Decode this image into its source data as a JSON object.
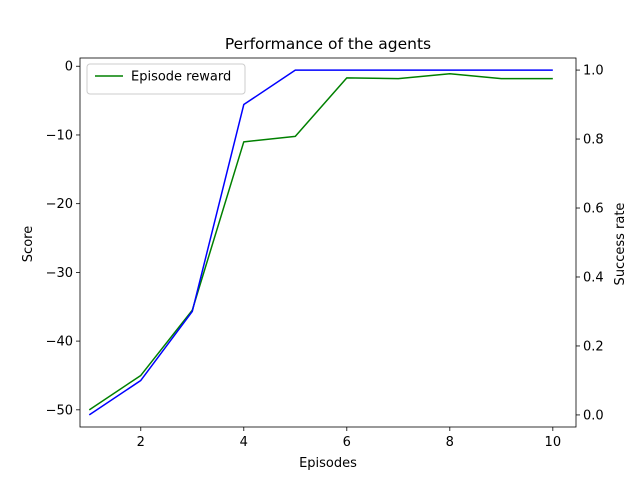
{
  "chart_data": {
    "type": "line",
    "title": "Performance of the agents",
    "xlabel": "Episodes",
    "ylabel": "Score",
    "y2label": "Success rate",
    "xlim": [
      0.82,
      10.45
    ],
    "ylim": [
      -52.5,
      1.2
    ],
    "y2lim": [
      -0.035,
      1.035
    ],
    "xticks": [
      2,
      4,
      6,
      8,
      10
    ],
    "yticks": [
      0,
      -10,
      -20,
      -30,
      -40,
      -50
    ],
    "y2ticks": [
      0.0,
      0.2,
      0.4,
      0.6,
      0.8,
      1.0
    ],
    "x": [
      1,
      2,
      3,
      4,
      5,
      6,
      7,
      8,
      9,
      10
    ],
    "series": [
      {
        "name": "Episode reward",
        "axis": "left",
        "color": "#008000",
        "values": [
          -50,
          -45,
          -35.5,
          -11,
          -10.2,
          -1.7,
          -1.8,
          -1.1,
          -1.8,
          -1.8
        ]
      },
      {
        "name": "",
        "axis": "right",
        "color": "#0000ff",
        "values": [
          0.0,
          0.1,
          0.3,
          0.9,
          1.0,
          1.0,
          1.0,
          1.0,
          1.0,
          1.0
        ]
      }
    ],
    "grid": false,
    "legend": "upper-left"
  }
}
